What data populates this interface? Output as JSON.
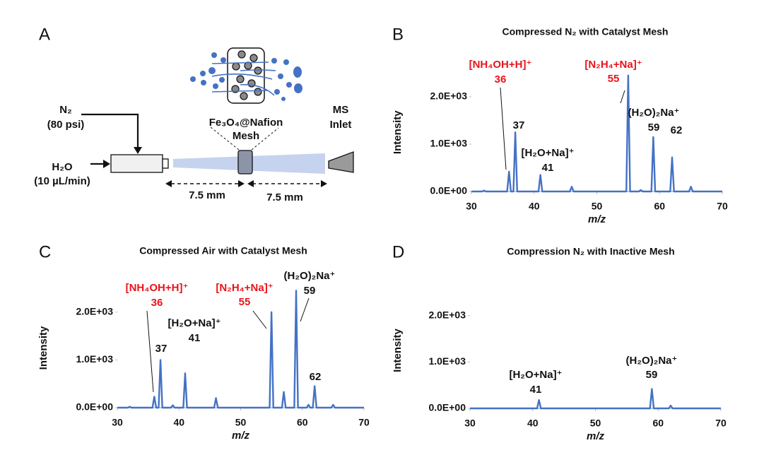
{
  "diagram": {
    "panel": "A",
    "labels": {
      "n2": [
        "N₂",
        "(80 psi)"
      ],
      "mesh": [
        "Fe₃O₄@Nafion",
        "Mesh"
      ],
      "inlet": [
        "MS",
        "Inlet"
      ],
      "water": [
        "H₂O",
        "(10 µL/min)"
      ],
      "dist1": "7.5 mm",
      "dist2": "7.5 mm"
    }
  },
  "chart_data": [
    {
      "type": "line",
      "panel": "B",
      "title": "Compressed N₂ with Catalyst Mesh",
      "x_label": "m/z",
      "y_label": "Intensity",
      "color": "#4472c4",
      "xlim": [
        30,
        70
      ],
      "xticks": [
        30,
        40,
        50,
        60,
        70
      ],
      "ylim": [
        0,
        2500
      ],
      "yticks": [
        {
          "value": 0,
          "label": "0.0E+00"
        },
        {
          "value": 1000,
          "label": "1.0E+03"
        },
        {
          "value": 2000,
          "label": "2.0E+03"
        }
      ],
      "x": [
        30,
        31.7,
        32,
        32.3,
        35.7,
        36,
        36.3,
        36.7,
        37,
        37.3,
        40.7,
        41,
        41.3,
        45.7,
        46,
        46.3,
        54.7,
        55,
        55.3,
        56.7,
        57,
        57.3,
        58.7,
        59,
        59.3,
        61.7,
        62,
        62.3,
        64.7,
        65,
        65.3,
        70
      ],
      "values": [
        0,
        0,
        20,
        0,
        0,
        420,
        0,
        0,
        1250,
        0,
        0,
        350,
        0,
        0,
        100,
        0,
        0,
        2450,
        0,
        0,
        30,
        0,
        0,
        1150,
        0,
        0,
        720,
        0,
        0,
        100,
        0,
        0
      ],
      "annotations": [
        {
          "lines": [
            "[NH₄OH+H]⁺",
            "36"
          ],
          "color": "#e8141b"
        },
        {
          "lines": [
            "37"
          ],
          "color": "#111111"
        },
        {
          "lines": [
            "[H₂O+Na]⁺",
            "41"
          ],
          "color": "#111111"
        },
        {
          "lines": [
            "[N₂H₄+Na]⁺",
            "55"
          ],
          "color": "#e8141b"
        },
        {
          "lines": [
            "(H₂O)₂Na⁺",
            "59"
          ],
          "color": "#111111"
        },
        {
          "lines": [
            "62"
          ],
          "color": "#111111"
        }
      ]
    },
    {
      "type": "line",
      "panel": "C",
      "title": "Compressed Air with Catalyst Mesh",
      "x_label": "m/z",
      "y_label": "Intensity",
      "color": "#4472c4",
      "xlim": [
        30,
        70
      ],
      "xticks": [
        30,
        40,
        50,
        60,
        70
      ],
      "ylim": [
        0,
        2500
      ],
      "yticks": [
        {
          "value": 0,
          "label": "0.0E+00"
        },
        {
          "value": 1000,
          "label": "1.0E+03"
        },
        {
          "value": 2000,
          "label": "2.0E+03"
        }
      ],
      "x": [
        30,
        31.7,
        32,
        32.3,
        35.7,
        36,
        36.3,
        36.7,
        37,
        37.3,
        38.7,
        39,
        39.3,
        40.7,
        41,
        41.3,
        45.7,
        46,
        46.3,
        54.7,
        55,
        55.3,
        56.7,
        57,
        57.3,
        58.7,
        59,
        59.3,
        60.7,
        61,
        61.3,
        61.7,
        62,
        62.3,
        64.7,
        65,
        65.3,
        70
      ],
      "values": [
        0,
        0,
        20,
        0,
        0,
        230,
        0,
        0,
        1000,
        0,
        0,
        50,
        0,
        0,
        720,
        0,
        0,
        200,
        0,
        0,
        2000,
        0,
        0,
        330,
        0,
        0,
        2450,
        0,
        0,
        60,
        0,
        0,
        450,
        0,
        0,
        60,
        0,
        0
      ],
      "annotations": [
        {
          "lines": [
            "[NH₄OH+H]⁺",
            "36"
          ],
          "color": "#e8141b"
        },
        {
          "lines": [
            "37"
          ],
          "color": "#111111"
        },
        {
          "lines": [
            "[H₂O+Na]⁺",
            "41"
          ],
          "color": "#111111"
        },
        {
          "lines": [
            "[N₂H₄+Na]⁺",
            "55"
          ],
          "color": "#e8141b"
        },
        {
          "lines": [
            "(H₂O)₂Na⁺",
            "59"
          ],
          "color": "#111111"
        },
        {
          "lines": [
            "62"
          ],
          "color": "#111111"
        }
      ]
    },
    {
      "type": "line",
      "panel": "D",
      "title": "Compression N₂ with Inactive Mesh",
      "x_label": "m/z",
      "y_label": "Intensity",
      "color": "#4472c4",
      "xlim": [
        30,
        70
      ],
      "xticks": [
        30,
        40,
        50,
        60,
        70
      ],
      "ylim": [
        0,
        2500
      ],
      "yticks": [
        {
          "value": 0,
          "label": "0.0E+00"
        },
        {
          "value": 1000,
          "label": "1.0E+03"
        },
        {
          "value": 2000,
          "label": "2.0E+03"
        }
      ],
      "x": [
        30,
        40.7,
        41,
        41.3,
        58.7,
        59,
        59.3,
        61.7,
        62,
        62.3,
        70
      ],
      "values": [
        0,
        0,
        180,
        0,
        0,
        420,
        0,
        0,
        60,
        0,
        0
      ],
      "annotations": [
        {
          "lines": [
            "[H₂O+Na]⁺",
            "41"
          ],
          "color": "#111111"
        },
        {
          "lines": [
            "(H₂O)₂Na⁺",
            "59"
          ],
          "color": "#111111"
        }
      ]
    }
  ]
}
